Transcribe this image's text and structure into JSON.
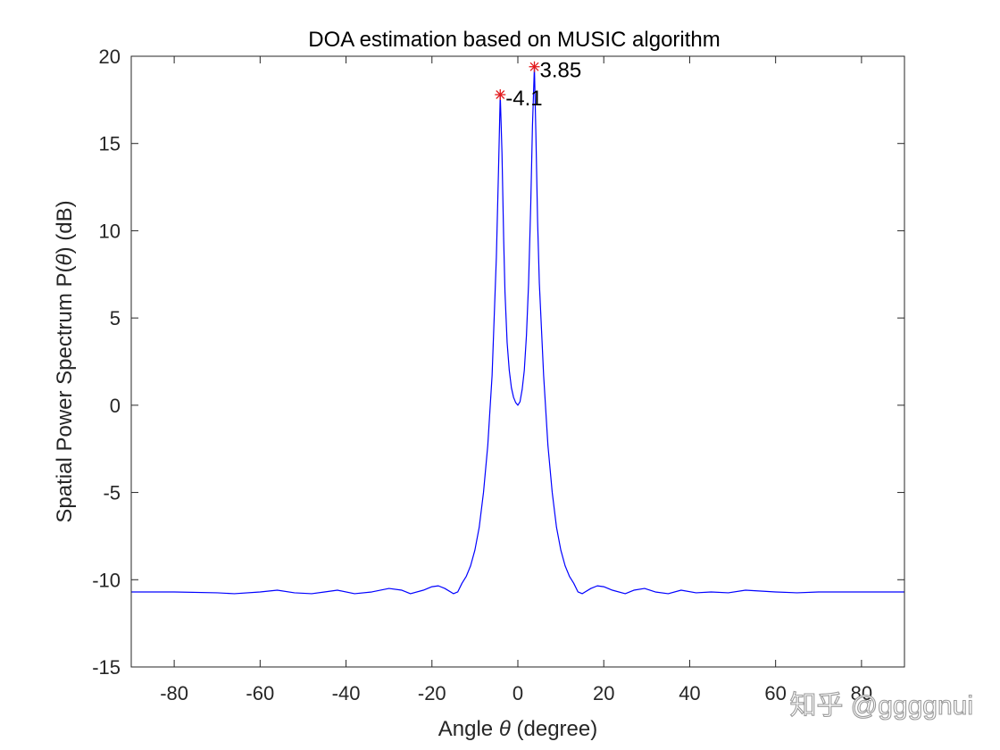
{
  "chart_data": {
    "type": "line",
    "title": "DOA estimation based on MUSIC algorithm",
    "xlabel_prefix": "Angle ",
    "xlabel_symbol": "θ",
    "xlabel_suffix": " (degree)",
    "ylabel_prefix": "Spatial Power Spectrum P(",
    "ylabel_symbol": "θ",
    "ylabel_suffix": ") (dB)",
    "xlim": [
      -90,
      90
    ],
    "ylim": [
      -15,
      20
    ],
    "xticks": [
      -80,
      -60,
      -40,
      -20,
      0,
      20,
      40,
      60,
      80
    ],
    "yticks": [
      -15,
      -10,
      -5,
      0,
      5,
      10,
      15,
      20
    ],
    "grid": false,
    "series": [
      {
        "color": "#0000ff",
        "x": [
          -90,
          -80,
          -70,
          -66,
          -60,
          -56,
          -52,
          -48,
          -45,
          -42,
          -38,
          -34,
          -30,
          -27,
          -25,
          -22,
          -20,
          -18.5,
          -17,
          -15,
          -14,
          -13,
          -12,
          -11,
          -10,
          -9,
          -8,
          -7,
          -6,
          -5,
          -4.5,
          -4.1,
          -3.7,
          -3.3,
          -3,
          -2.5,
          -2,
          -1.5,
          -1,
          -0.5,
          0,
          0.5,
          1,
          1.5,
          2,
          2.5,
          3,
          3.4,
          3.85,
          4.2,
          4.6,
          5,
          6,
          7,
          8,
          9,
          10,
          11,
          12,
          13,
          14,
          15,
          17,
          18.5,
          20,
          22,
          25,
          27,
          29.5,
          32,
          35,
          38,
          41.5,
          45,
          49,
          53,
          56.5,
          60,
          65,
          70,
          80,
          90
        ],
        "y": [
          -10.7,
          -10.7,
          -10.75,
          -10.8,
          -10.7,
          -10.6,
          -10.75,
          -10.8,
          -10.7,
          -10.6,
          -10.8,
          -10.7,
          -10.5,
          -10.6,
          -10.8,
          -10.6,
          -10.4,
          -10.35,
          -10.5,
          -10.8,
          -10.7,
          -10.2,
          -9.8,
          -9.2,
          -8.3,
          -7.0,
          -5.0,
          -2.3,
          1.7,
          8.5,
          13.5,
          17.8,
          14.5,
          9.5,
          6.5,
          3.6,
          2.0,
          1.0,
          0.45,
          0.15,
          0.0,
          0.2,
          0.9,
          2.0,
          4.0,
          7.0,
          11.5,
          16.0,
          19.4,
          15.5,
          10.5,
          7.0,
          1.7,
          -2.3,
          -5.0,
          -7.0,
          -8.3,
          -9.2,
          -9.8,
          -10.2,
          -10.7,
          -10.8,
          -10.5,
          -10.35,
          -10.4,
          -10.6,
          -10.8,
          -10.6,
          -10.5,
          -10.7,
          -10.8,
          -10.6,
          -10.75,
          -10.7,
          -10.75,
          -10.6,
          -10.65,
          -10.7,
          -10.75,
          -10.7,
          -10.7,
          -10.7
        ]
      }
    ],
    "markers": [
      {
        "x": -4.1,
        "y": 17.8,
        "label": "-4.1",
        "color": "#e31a1c"
      },
      {
        "x": 3.85,
        "y": 19.4,
        "label": "3.85",
        "color": "#e31a1c"
      }
    ]
  },
  "watermark": "知乎 @ggggnui"
}
